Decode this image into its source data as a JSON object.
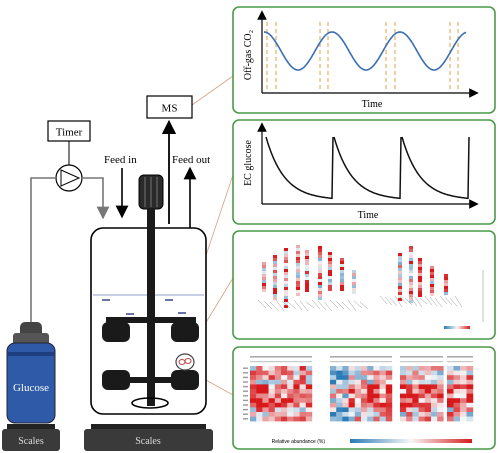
{
  "labels": {
    "timer": "Timer",
    "ms": "MS",
    "feed_in": "Feed in",
    "feed_out": "Feed out",
    "glucose": "Glucose",
    "scales_left": "Scales",
    "scales_right": "Scales"
  },
  "panels": {
    "offgas": {
      "ylabel": "Off-gas CO₂",
      "xlabel": "Time"
    },
    "ec": {
      "ylabel": "EC glucose",
      "xlabel": "Time"
    },
    "heatmap": {
      "legend": "Relative abundance (%)"
    }
  },
  "colors": {
    "panel_border": "#4a9a4a",
    "sine_line": "#3b6fb5",
    "dashed": "#e0a040",
    "glucose_bottle": "#2e5aa8",
    "heat_red": "#d7191c",
    "heat_blue": "#2c7bb6",
    "connector": "#d8a080"
  }
}
